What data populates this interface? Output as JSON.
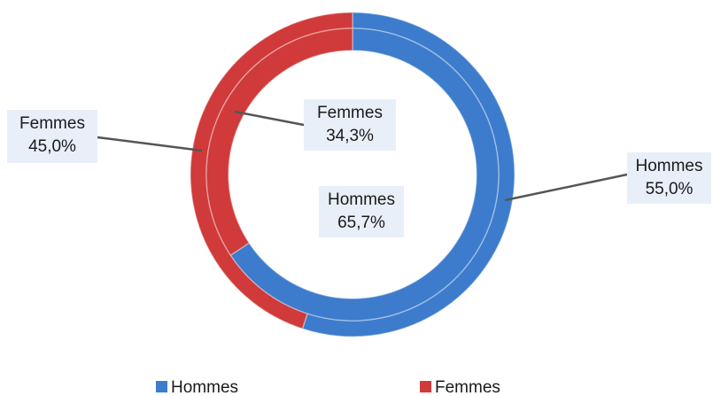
{
  "chart_data": {
    "type": "donut",
    "categories": [
      "Hommes",
      "Femmes"
    ],
    "colors": [
      "#3d7ccc",
      "#d03a3a"
    ],
    "series": [
      {
        "values": [
          55.0,
          45.0
        ],
        "value_labels": [
          "55,0%",
          "45,0%"
        ]
      },
      {
        "values": [
          65.7,
          34.3
        ],
        "value_labels": [
          "65,7%",
          "34,3%"
        ]
      }
    ],
    "legend": "bottom"
  }
}
